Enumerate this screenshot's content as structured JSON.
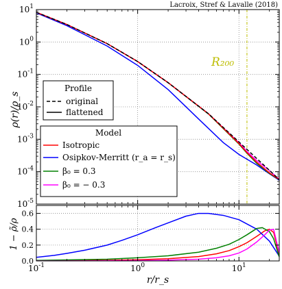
{
  "chart_data": [
    {
      "type": "line",
      "attribution": "Lacroix, Stref & Lavalle (2018)",
      "xscale": "log",
      "yscale": "log",
      "xlim": [
        0.1,
        25
      ],
      "ylim": [
        1e-05,
        10
      ],
      "ylabel": "ρ(r)/ρ_s",
      "annotation": {
        "text": "R₂₀₀",
        "x": 12
      },
      "grid": true,
      "xticks": [
        {
          "value": 0.1,
          "base": "10",
          "exp": "-1"
        },
        {
          "value": 1,
          "base": "10",
          "exp": "0"
        },
        {
          "value": 10,
          "base": "10",
          "exp": "1"
        }
      ],
      "yticks": [
        {
          "value": 10,
          "base": "10",
          "exp": "1"
        },
        {
          "value": 1,
          "base": "10",
          "exp": "0"
        },
        {
          "value": 0.1,
          "base": "10",
          "exp": "-1"
        },
        {
          "value": 0.01,
          "base": "10",
          "exp": "-2"
        },
        {
          "value": 0.001,
          "base": "10",
          "exp": "-3"
        },
        {
          "value": 0.0001,
          "base": "10",
          "exp": "-4"
        },
        {
          "value": 1e-05,
          "base": "10",
          "exp": "-5"
        }
      ],
      "legend_profile": {
        "title": "Profile",
        "placement": "center-left",
        "entries": [
          {
            "label": "original",
            "style": "dashed"
          },
          {
            "label": "flattened",
            "style": "solid"
          }
        ]
      },
      "legend_model": {
        "title": "Model",
        "placement": "lower-left",
        "entries": [
          {
            "label": "Isotropic",
            "color": "#ff0000"
          },
          {
            "label": "Osipkov-Merritt (r_a = r_s)",
            "color": "#0000ff"
          },
          {
            "label": "β₀ = 0.3",
            "color": "#008000"
          },
          {
            "label": "β₀ = − 0.3",
            "color": "#ff00ff"
          }
        ]
      },
      "series": [
        {
          "style": "dashed",
          "color": "#000000",
          "x": [
            0.1,
            0.2,
            0.5,
            1,
            2,
            5,
            10,
            15,
            20,
            25
          ],
          "y": [
            8.26,
            3.47,
            0.889,
            0.25,
            0.0556,
            0.00613,
            0.000826,
            0.000254,
            0.00011,
            5.71e-05
          ]
        },
        {
          "name": "Isotropic",
          "color": "#ff0000",
          "x": [
            0.1,
            0.2,
            0.5,
            1,
            2,
            5,
            10,
            12,
            15,
            20,
            25
          ],
          "y": [
            8.26,
            3.47,
            0.889,
            0.25,
            0.0556,
            0.00613,
            0.000736,
            0.000388,
            0.000195,
            9.2e-05,
            5.71e-05
          ]
        },
        {
          "name": "Osipkov-Merritt (r_a = r_s)",
          "color": "#0000ff",
          "x": [
            0.1,
            0.2,
            0.5,
            1,
            2,
            4,
            7,
            10,
            15,
            20,
            25
          ],
          "y": [
            7.9,
            3.2,
            0.75,
            0.19,
            0.034,
            0.0042,
            0.00079,
            0.00034,
            0.00016,
            8.58e-05,
            5.46e-05
          ]
        },
        {
          "name": "β₀ = 0.3",
          "color": "#008000",
          "x": [
            0.1,
            0.2,
            0.5,
            1,
            2,
            5,
            10,
            12,
            15,
            20,
            25
          ],
          "y": [
            8.26,
            3.47,
            0.889,
            0.25,
            0.0556,
            0.006,
            0.00071,
            0.00037,
            0.00018,
            8.8e-05,
            5.66e-05
          ]
        },
        {
          "name": "β₀ = − 0.3",
          "color": "#ff00ff",
          "x": [
            0.1,
            0.2,
            0.5,
            1,
            2,
            5,
            10,
            12,
            15,
            20,
            25
          ],
          "y": [
            8.26,
            3.47,
            0.889,
            0.25,
            0.0556,
            0.00613,
            0.00078,
            0.00042,
            0.00022,
            0.000108,
            5.79e-05
          ]
        }
      ]
    },
    {
      "type": "line",
      "xscale": "log",
      "xlim": [
        0.1,
        25
      ],
      "ylim": [
        0,
        0.7
      ],
      "xlabel": "r/r_s",
      "ylabel": "1 − ρ̃/ρ",
      "grid": true,
      "xticks": [
        {
          "value": 0.1,
          "base": "10",
          "exp": "-1"
        },
        {
          "value": 1,
          "base": "10",
          "exp": "0"
        },
        {
          "value": 10,
          "base": "10",
          "exp": "1"
        }
      ],
      "yticks": [
        {
          "value": 0,
          "label": "0.0"
        },
        {
          "value": 0.2,
          "label": "0.2"
        },
        {
          "value": 0.4,
          "label": "0.4"
        },
        {
          "value": 0.6,
          "label": "0.6"
        }
      ],
      "series": [
        {
          "name": "Isotropic",
          "color": "#ff0000",
          "x": [
            0.1,
            0.5,
            1,
            2,
            4,
            6,
            8,
            10,
            12,
            15,
            18,
            20,
            22,
            25
          ],
          "y": [
            0.002,
            0.008,
            0.015,
            0.028,
            0.055,
            0.09,
            0.13,
            0.18,
            0.23,
            0.31,
            0.38,
            0.4,
            0.36,
            0.08
          ]
        },
        {
          "name": "Osipkov-Merritt (r_a = r_s)",
          "color": "#0000ff",
          "x": [
            0.1,
            0.15,
            0.2,
            0.3,
            0.5,
            0.7,
            1,
            1.5,
            2,
            3,
            4,
            5,
            7,
            10,
            15,
            20,
            25
          ],
          "y": [
            0.045,
            0.07,
            0.095,
            0.135,
            0.2,
            0.26,
            0.33,
            0.42,
            0.48,
            0.565,
            0.6,
            0.6,
            0.575,
            0.52,
            0.4,
            0.25,
            0.06
          ]
        },
        {
          "name": "β₀ = 0.3",
          "color": "#008000",
          "x": [
            0.1,
            0.5,
            1,
            2,
            4,
            6,
            8,
            10,
            12,
            15,
            17,
            20,
            22,
            25
          ],
          "y": [
            0.006,
            0.022,
            0.04,
            0.065,
            0.11,
            0.16,
            0.21,
            0.27,
            0.33,
            0.41,
            0.42,
            0.37,
            0.28,
            0.05
          ]
        },
        {
          "name": "β₀ = − 0.3",
          "color": "#ff00ff",
          "x": [
            0.1,
            0.5,
            1,
            2,
            4,
            6,
            8,
            10,
            12,
            15,
            18,
            20,
            22,
            25
          ],
          "y": [
            0.0,
            0.002,
            0.004,
            0.01,
            0.022,
            0.04,
            0.065,
            0.1,
            0.15,
            0.24,
            0.33,
            0.39,
            0.4,
            0.1
          ]
        }
      ]
    }
  ]
}
